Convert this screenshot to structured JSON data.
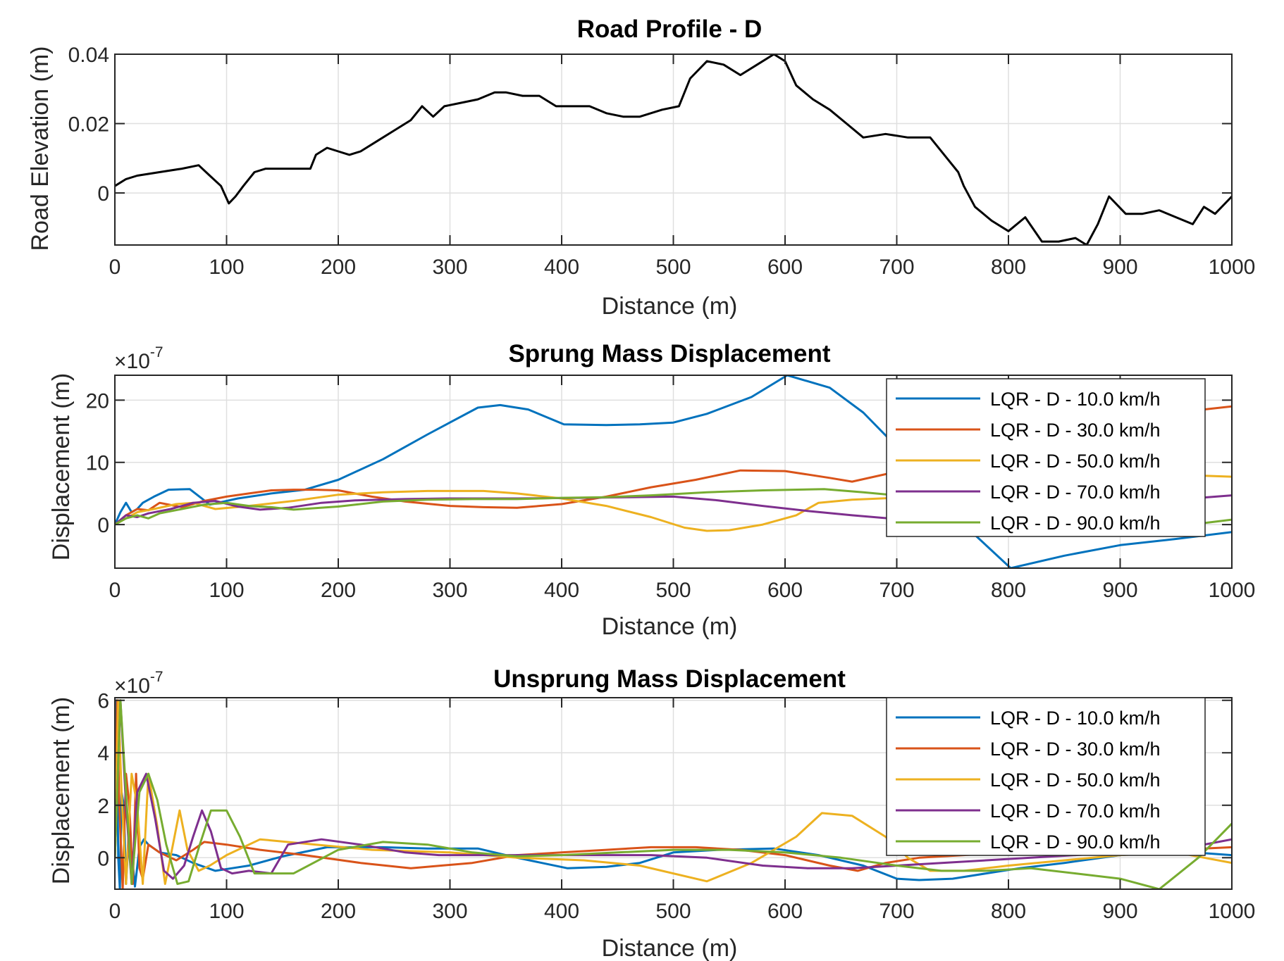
{
  "chart_data": [
    {
      "type": "line",
      "title": "Road Profile - D",
      "xlabel": "Distance (m)",
      "ylabel": "Road Elevation (m)",
      "xlim": [
        0,
        1000
      ],
      "ylim": [
        -0.015,
        0.04
      ],
      "xticks": [
        0,
        100,
        200,
        300,
        400,
        500,
        600,
        700,
        800,
        900,
        1000
      ],
      "xtick_labels": [
        "0",
        "100",
        "200",
        "300",
        "400",
        "500",
        "600",
        "700",
        "800",
        "900",
        "1000"
      ],
      "yticks": [
        0,
        0.02,
        0.04
      ],
      "ytick_labels": [
        "0",
        "0.02",
        "0.04"
      ],
      "grid": true,
      "legend": null,
      "series": [
        {
          "color": "#000000",
          "x": [
            0,
            10,
            20,
            40,
            60,
            75,
            85,
            95,
            102,
            108,
            115,
            125,
            135,
            150,
            165,
            175,
            180,
            190,
            200,
            210,
            220,
            235,
            250,
            265,
            275,
            285,
            295,
            310,
            325,
            340,
            350,
            365,
            380,
            395,
            410,
            425,
            440,
            455,
            470,
            490,
            505,
            515,
            530,
            545,
            560,
            575,
            590,
            600,
            610,
            625,
            640,
            655,
            670,
            690,
            710,
            730,
            745,
            755,
            760,
            770,
            785,
            800,
            815,
            830,
            845,
            860,
            870,
            880,
            890,
            905,
            920,
            935,
            950,
            965,
            975,
            985,
            1000
          ],
          "y": [
            0.002,
            0.004,
            0.005,
            0.006,
            0.007,
            0.008,
            0.005,
            0.002,
            -0.003,
            -0.001,
            0.002,
            0.006,
            0.007,
            0.007,
            0.007,
            0.007,
            0.011,
            0.013,
            0.012,
            0.011,
            0.012,
            0.015,
            0.018,
            0.021,
            0.025,
            0.022,
            0.025,
            0.026,
            0.027,
            0.029,
            0.029,
            0.028,
            0.028,
            0.025,
            0.025,
            0.025,
            0.023,
            0.022,
            0.022,
            0.024,
            0.025,
            0.033,
            0.038,
            0.037,
            0.034,
            0.037,
            0.04,
            0.038,
            0.031,
            0.027,
            0.024,
            0.02,
            0.016,
            0.017,
            0.016,
            0.016,
            0.01,
            0.006,
            0.002,
            -0.004,
            -0.008,
            -0.011,
            -0.007,
            -0.014,
            -0.014,
            -0.013,
            -0.015,
            -0.009,
            -0.001,
            -0.006,
            -0.006,
            -0.005,
            -0.007,
            -0.009,
            -0.004,
            -0.006,
            -0.001
          ]
        }
      ]
    },
    {
      "type": "line",
      "title": "Sprung Mass Displacement",
      "xlabel": "Distance (m)",
      "ylabel": "Displacement (m)",
      "exponent_label": "×10",
      "exponent_value": "-7",
      "xlim": [
        0,
        1000
      ],
      "ylim": [
        -7,
        24
      ],
      "xticks": [
        0,
        100,
        200,
        300,
        400,
        500,
        600,
        700,
        800,
        900,
        1000
      ],
      "xtick_labels": [
        "0",
        "100",
        "200",
        "300",
        "400",
        "500",
        "600",
        "700",
        "800",
        "900",
        "1000"
      ],
      "yticks": [
        0,
        10,
        20
      ],
      "ytick_labels": [
        "0",
        "10",
        "20"
      ],
      "grid": true,
      "legend": "top-right",
      "series": [
        {
          "name": "LQR - D - 10.0 km/h",
          "color": "#0072BD",
          "x": [
            0,
            5,
            10,
            15,
            20,
            25,
            35,
            48,
            67,
            85,
            110,
            140,
            170,
            200,
            240,
            280,
            325,
            345,
            370,
            402,
            440,
            470,
            500,
            530,
            570,
            602,
            640,
            670,
            700,
            730,
            760,
            802,
            850,
            900,
            950,
            1000
          ],
          "y": [
            0,
            2,
            3.5,
            2,
            2.5,
            3.5,
            4.5,
            5.6,
            5.7,
            3.2,
            4.2,
            5,
            5.6,
            7.2,
            10.5,
            14.5,
            18.8,
            19.2,
            18.5,
            16.1,
            16,
            16.1,
            16.4,
            17.8,
            20.5,
            24,
            22,
            18,
            12.5,
            6,
            0,
            -7,
            -5,
            -3.3,
            -2.3,
            -1.2
          ]
        },
        {
          "name": "LQR - D - 30.0 km/h",
          "color": "#D95319",
          "x": [
            0,
            10,
            20,
            30,
            40,
            60,
            80,
            100,
            120,
            140,
            160,
            180,
            200,
            230,
            260,
            300,
            330,
            360,
            400,
            440,
            480,
            520,
            560,
            600,
            640,
            660,
            700,
            750,
            800,
            850,
            900,
            950,
            1000
          ],
          "y": [
            0,
            1.5,
            2.5,
            2.3,
            3.5,
            2.8,
            3.8,
            4.5,
            5,
            5.5,
            5.6,
            5.6,
            5.5,
            4.5,
            3.7,
            3,
            2.8,
            2.7,
            3.3,
            4.5,
            6,
            7.2,
            8.7,
            8.6,
            7.5,
            6.9,
            8.5,
            11,
            13.5,
            15.5,
            17,
            18,
            19
          ]
        },
        {
          "name": "LQR - D - 50.0 km/h",
          "color": "#EDB120",
          "x": [
            0,
            10,
            20,
            35,
            55,
            70,
            90,
            120,
            160,
            200,
            240,
            280,
            330,
            360,
            400,
            440,
            480,
            510,
            530,
            550,
            580,
            610,
            630,
            660,
            700,
            740,
            780,
            820,
            860,
            900,
            950,
            1000
          ],
          "y": [
            0,
            1,
            2,
            2.5,
            3.3,
            3.5,
            2.5,
            3,
            3.8,
            4.8,
            5.2,
            5.4,
            5.4,
            5,
            4.2,
            3,
            1.2,
            -0.5,
            -1,
            -0.9,
            0,
            1.5,
            3.5,
            4,
            4.3,
            4.6,
            5.2,
            6,
            6.8,
            7.4,
            8,
            7.7
          ]
        },
        {
          "name": "LQR - D - 70.0 km/h",
          "color": "#7E2F8E",
          "x": [
            0,
            10,
            20,
            30,
            50,
            70,
            90,
            110,
            130,
            155,
            185,
            215,
            260,
            300,
            360,
            420,
            460,
            500,
            540,
            580,
            620,
            660,
            700,
            730,
            760,
            800,
            850,
            900,
            950,
            1000
          ],
          "y": [
            0,
            1.5,
            1.2,
            1.8,
            2.5,
            3.5,
            3.8,
            2.9,
            2.4,
            2.7,
            3.5,
            3.9,
            4.1,
            4.2,
            4.2,
            4.3,
            4.4,
            4.5,
            3.9,
            3,
            2.2,
            1.5,
            0.9,
            0.5,
            1.5,
            2.3,
            3,
            3.7,
            4,
            4.7
          ]
        },
        {
          "name": "LQR - D - 90.0 km/h",
          "color": "#77AC30",
          "x": [
            0,
            10,
            20,
            30,
            40,
            60,
            80,
            100,
            120,
            140,
            160,
            200,
            240,
            280,
            320,
            360,
            400,
            440,
            480,
            530,
            580,
            635,
            670,
            700,
            720,
            740,
            780,
            820,
            860,
            900,
            950,
            1000
          ],
          "y": [
            0,
            1,
            1.5,
            1,
            1.8,
            2.5,
            3.2,
            3.5,
            3,
            2.8,
            2.4,
            2.9,
            3.7,
            4,
            4.1,
            4.1,
            4.3,
            4.4,
            4.7,
            5.2,
            5.5,
            5.7,
            5.2,
            4.7,
            3.5,
            2.2,
            1.1,
            -0.5,
            -1.2,
            -1,
            -0.3,
            0.8
          ]
        }
      ]
    },
    {
      "type": "line",
      "title": "Unsprung Mass Displacement",
      "xlabel": "Distance (m)",
      "ylabel": "Displacement (m)",
      "exponent_label": "×10",
      "exponent_value": "-7",
      "xlim": [
        0,
        1000
      ],
      "ylim": [
        -1.2,
        6.1
      ],
      "xticks": [
        0,
        100,
        200,
        300,
        400,
        500,
        600,
        700,
        800,
        900,
        1000
      ],
      "xtick_labels": [
        "0",
        "100",
        "200",
        "300",
        "400",
        "500",
        "600",
        "700",
        "800",
        "900",
        "1000"
      ],
      "yticks": [
        0,
        2,
        4,
        6
      ],
      "ytick_labels": [
        "0",
        "2",
        "4",
        "6"
      ],
      "grid": true,
      "legend": "top-right",
      "series": [
        {
          "name": "LQR - D - 10.0 km/h",
          "color": "#0072BD",
          "x": [
            0,
            1.5,
            3,
            4.5,
            6,
            8,
            10,
            12,
            15,
            18,
            22,
            26,
            30,
            40,
            55,
            70,
            90,
            105,
            120,
            150,
            190,
            240,
            280,
            325,
            360,
            405,
            440,
            470,
            500,
            540,
            590,
            630,
            670,
            700,
            720,
            750,
            780,
            810,
            850,
            900,
            950,
            1000
          ],
          "y": [
            0,
            6,
            0,
            -1.2,
            2.5,
            2,
            -1,
            0.5,
            0.2,
            -1.1,
            0.4,
            0.7,
            0.5,
            0.2,
            0.1,
            -0.2,
            -0.5,
            -0.4,
            -0.3,
            0.05,
            0.4,
            0.4,
            0.35,
            0.35,
            0,
            -0.4,
            -0.35,
            -0.2,
            0.2,
            0.3,
            0.35,
            0.1,
            -0.3,
            -0.8,
            -0.85,
            -0.8,
            -0.6,
            -0.4,
            -0.2,
            0.1,
            0.25,
            0.1
          ]
        },
        {
          "name": "LQR - D - 30.0 km/h",
          "color": "#D95319",
          "x": [
            0,
            2,
            4,
            7,
            10,
            13,
            16,
            19,
            22,
            25,
            30,
            40,
            55,
            70,
            80,
            100,
            130,
            170,
            220,
            265,
            320,
            360,
            400,
            440,
            480,
            520,
            560,
            600,
            640,
            665,
            690,
            720,
            760,
            800,
            850,
            900,
            950,
            1000
          ],
          "y": [
            0,
            6,
            2,
            -1.2,
            3.2,
            2,
            -1,
            3.2,
            -0.4,
            -0.8,
            0.5,
            0.2,
            -0.1,
            0.3,
            0.6,
            0.5,
            0.3,
            0.1,
            -0.2,
            -0.4,
            -0.2,
            0.1,
            0.2,
            0.3,
            0.4,
            0.4,
            0.3,
            0.1,
            -0.3,
            -0.5,
            -0.2,
            0,
            0.1,
            0.2,
            0.3,
            0.35,
            0.3,
            0.4
          ]
        },
        {
          "name": "LQR - D - 50.0 km/h",
          "color": "#EDB120",
          "x": [
            0,
            3,
            6,
            10,
            15,
            20,
            25,
            30,
            38,
            45,
            52,
            58,
            65,
            75,
            85,
            100,
            130,
            180,
            230,
            300,
            360,
            420,
            470,
            530,
            570,
            610,
            633,
            660,
            690,
            710,
            730,
            760,
            800,
            850,
            900,
            950,
            1000
          ],
          "y": [
            0,
            6,
            2.5,
            -1,
            3.2,
            2,
            -1,
            3.2,
            1.2,
            -1,
            0.5,
            1.8,
            0.3,
            -0.5,
            -0.3,
            0.1,
            0.7,
            0.5,
            0.3,
            0.2,
            0,
            -0.1,
            -0.3,
            -0.9,
            -0.2,
            0.8,
            1.7,
            1.6,
            0.8,
            0,
            -0.5,
            -0.5,
            -0.3,
            -0.1,
            0.1,
            0.2,
            -0.2
          ]
        },
        {
          "name": "LQR - D - 70.0 km/h",
          "color": "#7E2F8E",
          "x": [
            0,
            5,
            10,
            15,
            20,
            28,
            36,
            44,
            52,
            62,
            70,
            78,
            86,
            95,
            105,
            120,
            140,
            155,
            185,
            220,
            260,
            290,
            330,
            380,
            430,
            480,
            530,
            580,
            620,
            660,
            700,
            740,
            780,
            820,
            860,
            900,
            950,
            1000
          ],
          "y": [
            0,
            6,
            2,
            -1,
            2.5,
            3.2,
            1.5,
            -0.5,
            -0.8,
            -0.3,
            0.8,
            1.8,
            1,
            -0.4,
            -0.6,
            -0.5,
            -0.6,
            0.5,
            0.7,
            0.5,
            0.2,
            0.1,
            0.1,
            0.1,
            0.1,
            0.1,
            0,
            -0.3,
            -0.4,
            -0.4,
            -0.3,
            -0.2,
            -0.1,
            0,
            0.1,
            0.2,
            0.3,
            0.7
          ]
        },
        {
          "name": "LQR - D - 90.0 km/h",
          "color": "#77AC30",
          "x": [
            0,
            5,
            10,
            15,
            22,
            30,
            38,
            46,
            56,
            66,
            76,
            86,
            100,
            112,
            125,
            140,
            160,
            200,
            240,
            280,
            320,
            360,
            400,
            450,
            500,
            550,
            600,
            650,
            700,
            740,
            780,
            820,
            860,
            900,
            935,
            970,
            1000
          ],
          "y": [
            0,
            6,
            2.5,
            -1,
            2.5,
            3.2,
            2.2,
            0.5,
            -1,
            -0.9,
            0.5,
            1.8,
            1.8,
            0.8,
            -0.6,
            -0.6,
            -0.6,
            0.3,
            0.6,
            0.5,
            0.2,
            0.05,
            0.1,
            0.2,
            0.3,
            0.3,
            0.2,
            0,
            -0.3,
            -0.5,
            -0.5,
            -0.4,
            -0.6,
            -0.8,
            -1.2,
            0,
            1.3
          ]
        }
      ]
    }
  ]
}
